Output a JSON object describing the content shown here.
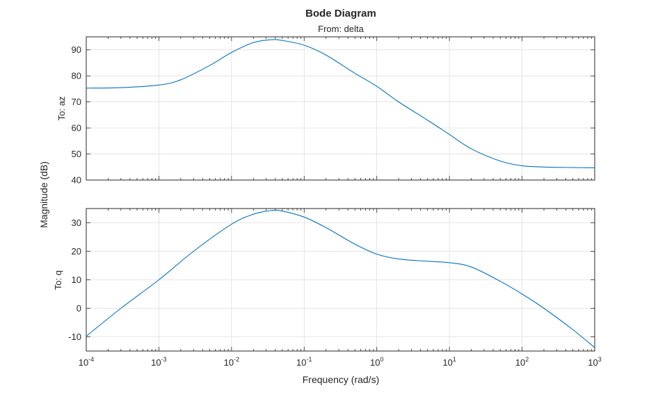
{
  "chart_data": {
    "type": "line",
    "title": "Bode Diagram",
    "subtitle": "From: delta",
    "xlabel": "Frequency (rad/s)",
    "ylabel": "Magnitude (dB)",
    "x_scale": "log",
    "xlim": [
      0.0001,
      1000
    ],
    "x_ticks": [
      {
        "base": "10",
        "exp": "-4"
      },
      {
        "base": "10",
        "exp": "-3"
      },
      {
        "base": "10",
        "exp": "-2"
      },
      {
        "base": "10",
        "exp": "-1"
      },
      {
        "base": "10",
        "exp": "0"
      },
      {
        "base": "10",
        "exp": "1"
      },
      {
        "base": "10",
        "exp": "2"
      },
      {
        "base": "10",
        "exp": "3"
      }
    ],
    "grid": true,
    "line_color": "#0072bd",
    "panels": [
      {
        "name": "To: az",
        "ylim": [
          40,
          95
        ],
        "y_ticks": [
          "40",
          "50",
          "60",
          "70",
          "80",
          "90"
        ],
        "x": [
          0.0001,
          0.0003,
          0.001,
          0.002,
          0.005,
          0.01,
          0.02,
          0.035,
          0.05,
          0.1,
          0.2,
          0.5,
          1,
          2,
          5,
          10,
          20,
          50,
          100,
          200,
          500,
          1000
        ],
        "y": [
          75.3,
          75.5,
          76.5,
          78.5,
          84,
          89,
          92.8,
          93.9,
          93.6,
          91.8,
          88,
          81,
          76,
          70,
          63,
          57.5,
          52,
          47.3,
          45.5,
          45,
          44.8,
          44.7
        ]
      },
      {
        "name": "To: q",
        "ylim": [
          -15,
          35
        ],
        "y_ticks": [
          "-10",
          "0",
          "10",
          "20",
          "30"
        ],
        "x": [
          0.0001,
          0.0003,
          0.001,
          0.003,
          0.01,
          0.02,
          0.035,
          0.05,
          0.1,
          0.2,
          0.5,
          1,
          2,
          5,
          10,
          20,
          50,
          100,
          200,
          500,
          1000
        ],
        "y": [
          -9.8,
          0,
          10,
          20,
          29.5,
          33,
          34.3,
          34.1,
          32,
          28.3,
          22.5,
          19,
          17.3,
          16.5,
          16,
          14.5,
          9.5,
          5,
          0,
          -7.5,
          -13.8
        ]
      }
    ]
  }
}
